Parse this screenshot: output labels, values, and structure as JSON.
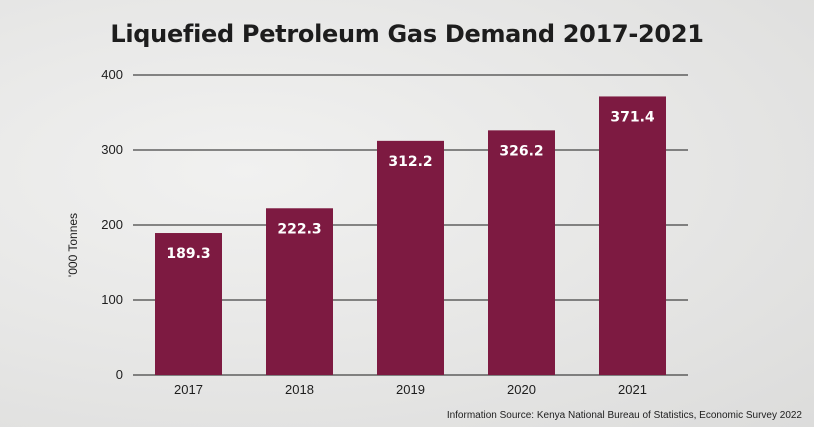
{
  "chart_data": {
    "type": "bar",
    "title": "Liquefied Petroleum Gas Demand 2017-2021",
    "xlabel": "",
    "ylabel": "'000 Tonnes",
    "categories": [
      "2017",
      "2018",
      "2019",
      "2020",
      "2021"
    ],
    "values": [
      189.3,
      222.3,
      312.2,
      326.2,
      371.4
    ],
    "data_labels": [
      "189.3",
      "222.3",
      "312.2",
      "326.2",
      "371.4"
    ],
    "ylim": [
      0,
      400
    ],
    "yticks": [
      0,
      100,
      200,
      300,
      400
    ],
    "grid": true,
    "bar_color": "#7d1a41",
    "source": "Information Source: Kenya National Bureau of Statistics, Economic Survey 2022"
  }
}
